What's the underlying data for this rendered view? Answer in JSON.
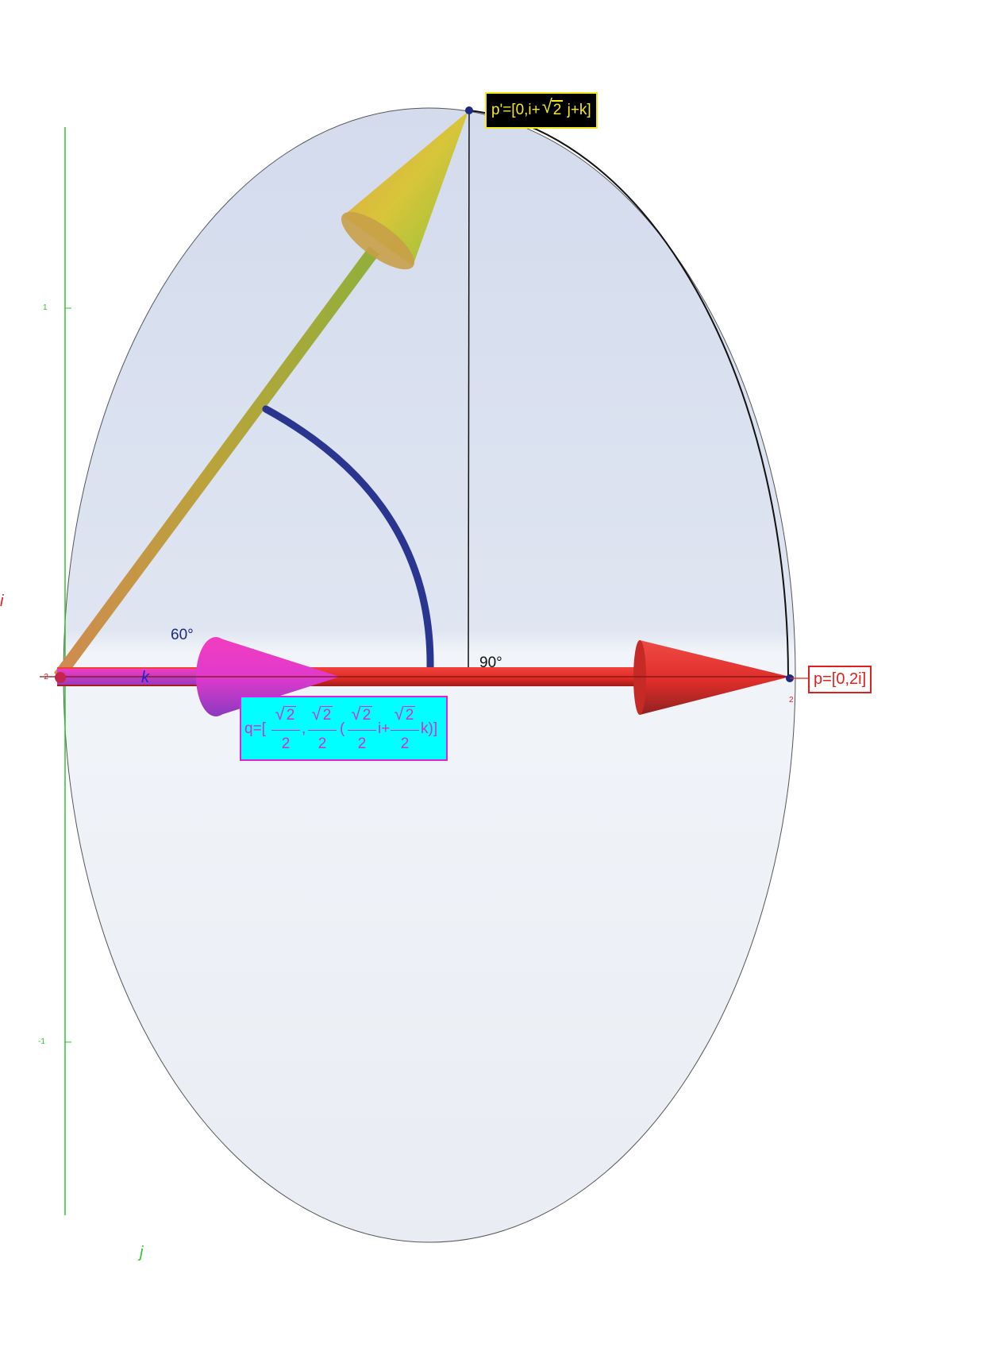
{
  "axes": {
    "i_label": "i",
    "j_label": "j",
    "k_label": "k",
    "ticks": {
      "j_pos1": "1",
      "j_neg1": "-1",
      "k_neg2": "-2",
      "i_pos2": "2"
    }
  },
  "angles": {
    "sixty": "60°",
    "ninety": "90°"
  },
  "labels": {
    "p_prime_prefix": "p'=[0,i+",
    "p_prime_sqrt": "2",
    "p_prime_suffix": " j+k]",
    "p": "p=[0,2i]",
    "q_prefix": "q=[",
    "q_sqrt": "2",
    "q_den": "2",
    "q_comma": ",",
    "q_paren": "(",
    "q_i": "i+",
    "q_k": "k)]"
  },
  "colors": {
    "p_vector": "#e8312f",
    "q_vector": "#e03ad0",
    "p_prime_vector": "#b8a838",
    "angle_arc": "#2a3590",
    "axis_green": "#2ec62e",
    "disc_fill": "#d3dbee"
  },
  "vectors": {
    "p": {
      "name": "p",
      "components": [
        0,
        2,
        0,
        0
      ]
    },
    "p_prime": {
      "name": "p'",
      "components": [
        0,
        1,
        1.4142,
        1
      ]
    },
    "q": {
      "name": "q",
      "components": [
        0.7071,
        0.7071,
        0,
        0.7071
      ]
    }
  }
}
